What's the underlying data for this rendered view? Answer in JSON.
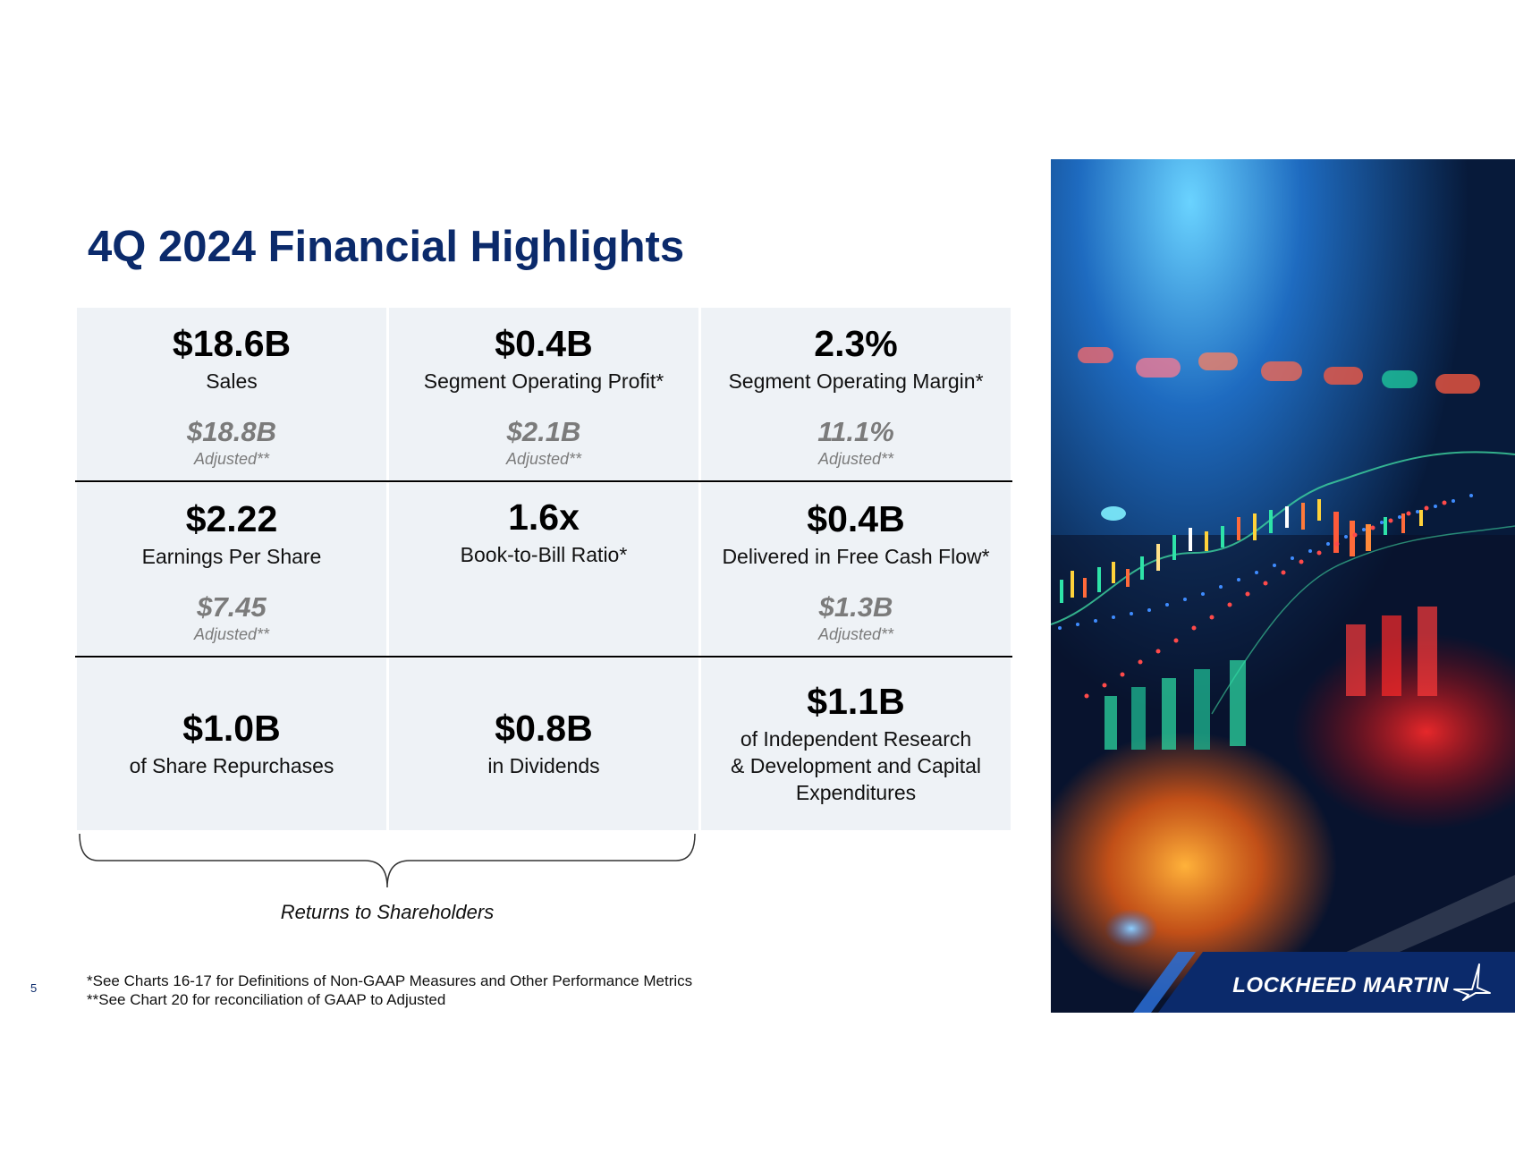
{
  "slide": {
    "title": "4Q 2024 Financial Highlights",
    "page_number": "5"
  },
  "metrics": {
    "sales": {
      "value": "$18.6B",
      "label": "Sales",
      "adjusted_value": "$18.8B",
      "adjusted_label": "Adjusted**"
    },
    "segment_operating_profit": {
      "value": "$0.4B",
      "label": "Segment Operating Profit*",
      "adjusted_value": "$2.1B",
      "adjusted_label": "Adjusted**"
    },
    "segment_operating_margin": {
      "value": "2.3%",
      "label": "Segment Operating Margin*",
      "adjusted_value": "11.1%",
      "adjusted_label": "Adjusted**"
    },
    "eps": {
      "value": "$2.22",
      "label": "Earnings Per Share",
      "adjusted_value": "$7.45",
      "adjusted_label": "Adjusted**"
    },
    "book_to_bill": {
      "value": "1.6x",
      "label": "Book-to-Bill Ratio*"
    },
    "free_cash_flow": {
      "value": "$0.4B",
      "label": "Delivered in Free Cash Flow*",
      "adjusted_value": "$1.3B",
      "adjusted_label": "Adjusted**"
    },
    "share_repurchases": {
      "value": "$1.0B",
      "label": "of Share Repurchases"
    },
    "dividends": {
      "value": "$0.8B",
      "label": "in Dividends"
    },
    "ird_capex": {
      "value": "$1.1B",
      "label_line1": "of Independent Research",
      "label_line2": "& Development and Capital",
      "label_line3": "Expenditures"
    }
  },
  "returns_label": "Returns to Shareholders",
  "footnotes": {
    "note1": "*See Charts 16-17 for Definitions of Non-GAAP Measures and Other Performance Metrics",
    "note2": "**See Chart 20 for reconciliation of GAAP to Adjusted"
  },
  "brand": {
    "name": "LOCKHEED MARTIN",
    "logo_icon": "star-logo-icon",
    "bar_color": "#0b2a6b",
    "accent_color": "#2a6fd6"
  },
  "colors": {
    "title": "#0b2a6b",
    "cell_bg": "#eef2f6",
    "adjusted": "#7b7b7b"
  }
}
